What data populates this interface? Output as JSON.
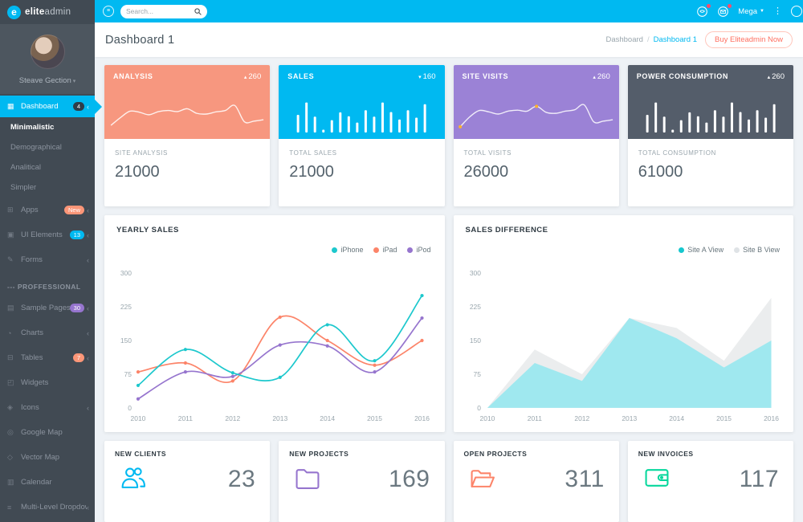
{
  "topbar": {
    "search_placeholder": "Search...",
    "mega_label": "Mega",
    "icons": [
      "chat-icon",
      "email-icon"
    ]
  },
  "header": {
    "title": "Dashboard 1",
    "breadcrumb_root": "Dashboard",
    "breadcrumb_current": "Dashboard 1",
    "buy_button": "Buy Eliteadmin Now"
  },
  "sidebar": {
    "logo_bold": "elite",
    "logo_light": "admin",
    "user_name": "Steave Gection",
    "items": [
      {
        "label": "Dashboard",
        "icon": "dashboard-icon",
        "glyph": "▦",
        "badge": "4",
        "badge_color": "#2f3d4a",
        "active": true,
        "chevron": true
      },
      {
        "label": "Minimalistic",
        "sub": true,
        "highlight": true
      },
      {
        "label": "Demographical",
        "sub": true
      },
      {
        "label": "Analitical",
        "sub": true
      },
      {
        "label": "Simpler",
        "sub": true
      },
      {
        "label": "Apps",
        "icon": "apps-icon",
        "glyph": "⊞",
        "badge": "New",
        "badge_color": "#fb9678",
        "chevron": true
      },
      {
        "label": "UI Elements",
        "icon": "ui-elements-icon",
        "glyph": "▣",
        "badge": "13",
        "badge_color": "#00b9f1",
        "chevron": true
      },
      {
        "label": "Forms",
        "icon": "forms-icon",
        "glyph": "✎",
        "chevron": true
      },
      {
        "type": "section",
        "label": "PROFFESSIONAL"
      },
      {
        "label": "Sample Pages",
        "icon": "sample-pages-icon",
        "glyph": "▤",
        "badge": "30",
        "badge_color": "#9675ce",
        "chevron": true
      },
      {
        "label": "Charts",
        "icon": "charts-icon",
        "glyph": "◔",
        "chevron": true
      },
      {
        "label": "Tables",
        "icon": "tables-icon",
        "glyph": "⊟",
        "badge": "7",
        "badge_color": "#fb9678",
        "chevron": true
      },
      {
        "label": "Widgets",
        "icon": "widgets-icon",
        "glyph": "◰"
      },
      {
        "label": "Icons",
        "icon": "icons-icon",
        "glyph": "◈",
        "chevron": true
      },
      {
        "label": "Google Map",
        "icon": "google-map-icon",
        "glyph": "◎"
      },
      {
        "label": "Vector Map",
        "icon": "vector-map-icon",
        "glyph": "◇"
      },
      {
        "label": "Calendar",
        "icon": "calendar-icon",
        "glyph": "▥"
      },
      {
        "label": "Multi-Level Dropdown",
        "icon": "multi-level-dropdown-icon",
        "glyph": "≡",
        "chevron": true
      }
    ]
  },
  "stats": [
    {
      "title": "ANALYSIS",
      "arrow": "▴",
      "trend": "260",
      "color": "#f7977f",
      "label": "SITE ANALYSIS",
      "value": "21000"
    },
    {
      "title": "SALES",
      "arrow": "▾",
      "trend": "160",
      "color": "#00b9f1",
      "label": "TOTAL SALES",
      "value": "21000"
    },
    {
      "title": "SITE VISITS",
      "arrow": "▴",
      "trend": "260",
      "color": "#9b82d6",
      "label": "TOTAL VISITS",
      "value": "26000"
    },
    {
      "title": "POWER CONSUMPTION",
      "arrow": "▴",
      "trend": "260",
      "color": "#545d6a",
      "label": "TOTAL CONSUMPTION",
      "value": "61000"
    }
  ],
  "chart_data": [
    {
      "id": "analysis-spark",
      "type": "line",
      "title": "ANALYSIS sparkline",
      "values": [
        18,
        40,
        58,
        55,
        48,
        57,
        60,
        57,
        65,
        52,
        50,
        56,
        60,
        74,
        28,
        30,
        34
      ]
    },
    {
      "id": "sales-spark",
      "type": "bar",
      "title": "SALES sparkbars",
      "values": [
        50,
        85,
        45,
        8,
        35,
        57,
        46,
        28,
        63,
        45,
        85,
        58,
        37,
        63,
        42,
        80
      ]
    },
    {
      "id": "visits-spark",
      "type": "line",
      "title": "SITE VISITS sparkline",
      "values": [
        14,
        42,
        60,
        56,
        50,
        58,
        61,
        58,
        72,
        55,
        52,
        58,
        62,
        76,
        28,
        30,
        34
      ],
      "marker_indices": [
        0,
        8
      ],
      "marker_color": "#ffb22b"
    },
    {
      "id": "power-spark",
      "type": "bar",
      "title": "POWER CONSUMPTION sparkbars",
      "values": [
        50,
        85,
        45,
        8,
        35,
        57,
        46,
        28,
        63,
        45,
        85,
        58,
        37,
        63,
        42,
        80
      ]
    },
    {
      "id": "yearly-sales",
      "type": "line",
      "title": "YEARLY SALES",
      "x": [
        "2010",
        "2011",
        "2012",
        "2013",
        "2014",
        "2015",
        "2016"
      ],
      "yticks": [
        0,
        75,
        150,
        225,
        300
      ],
      "ylim": [
        0,
        300
      ],
      "grid": false,
      "legend_position": "top-right",
      "render_order": [
        1,
        2,
        0
      ],
      "series": [
        {
          "name": "iPhone",
          "color": "#1dc8cd",
          "values": [
            50,
            130,
            78,
            68,
            185,
            105,
            250
          ]
        },
        {
          "name": "iPad",
          "color": "#fc8469",
          "values": [
            80,
            100,
            60,
            202,
            150,
            95,
            150
          ]
        },
        {
          "name": "iPod",
          "color": "#9675ce",
          "values": [
            20,
            80,
            70,
            140,
            138,
            80,
            200
          ]
        }
      ]
    },
    {
      "id": "sales-difference",
      "type": "area",
      "title": "SALES DIFFERENCE",
      "x": [
        "2010",
        "2011",
        "2012",
        "2013",
        "2014",
        "2015",
        "2016"
      ],
      "yticks": [
        0,
        75,
        150,
        225,
        300
      ],
      "ylim": [
        0,
        300
      ],
      "grid": false,
      "legend_position": "top-right",
      "series": [
        {
          "name": "Site B View",
          "color": "#ebedee",
          "values": [
            0,
            130,
            75,
            200,
            178,
            105,
            245
          ]
        },
        {
          "name": "Site A View",
          "color": "#9fe8ef",
          "values": [
            0,
            100,
            60,
            200,
            155,
            90,
            150
          ]
        }
      ],
      "legend": [
        {
          "name": "Site A View",
          "color": "#16c7ce"
        },
        {
          "name": "Site B View",
          "color": "#dfe3e6"
        }
      ]
    }
  ],
  "summary": [
    {
      "label": "NEW CLIENTS",
      "value": "23",
      "icon": "clients-icon",
      "color": "#00b9f1"
    },
    {
      "label": "NEW PROJECTS",
      "value": "169",
      "icon": "folder-icon",
      "color": "#9675ce"
    },
    {
      "label": "OPEN PROJECTS",
      "value": "311",
      "icon": "folder-open-icon",
      "color": "#fc8469"
    },
    {
      "label": "NEW INVOICES",
      "value": "117",
      "icon": "wallet-icon",
      "color": "#06d79c"
    }
  ]
}
